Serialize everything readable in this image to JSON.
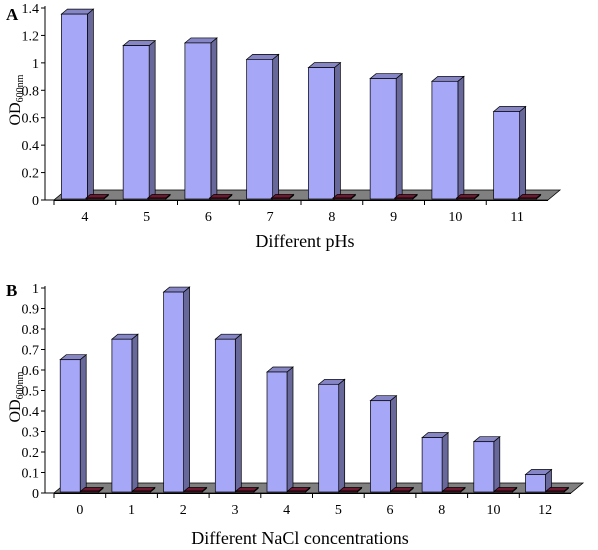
{
  "chart_data": [
    {
      "type": "bar",
      "panel_label": "A",
      "title": "",
      "xlabel": "Different pHs",
      "ylabel": "OD",
      "ylabel_subscript": "600nm",
      "categories": [
        "4",
        "5",
        "6",
        "7",
        "8",
        "9",
        "10",
        "11"
      ],
      "series": [
        {
          "values": [
            1.37,
            1.14,
            1.16,
            1.04,
            0.98,
            0.9,
            0.88,
            0.66
          ],
          "color": "#a7a7f8"
        },
        {
          "values": [
            0.01,
            0.01,
            0.01,
            0.01,
            0.01,
            0.01,
            0.01,
            0.01
          ],
          "color": "#8a1f3c"
        }
      ],
      "yticks": [
        "0",
        "0.2",
        "0.4",
        "0.6",
        "0.8",
        "1",
        "1.2",
        "1.4"
      ],
      "ylim": [
        0,
        1.4
      ],
      "grid": false,
      "floor_color": "#808080"
    },
    {
      "type": "bar",
      "panel_label": "B",
      "title": "",
      "xlabel": "Different NaCl concentrations",
      "ylabel": "OD",
      "ylabel_subscript": "600nm",
      "categories": [
        "0",
        "1",
        "2",
        "3",
        "4",
        "5",
        "6",
        "8",
        "10",
        "12"
      ],
      "series": [
        {
          "values": [
            0.66,
            0.76,
            0.99,
            0.76,
            0.6,
            0.54,
            0.46,
            0.28,
            0.26,
            0.1
          ],
          "color": "#a7a7f8"
        },
        {
          "values": [
            0.01,
            0.01,
            0.01,
            0.01,
            0.01,
            0.01,
            0.01,
            0.01,
            0.01,
            0.01
          ],
          "color": "#8a1f3c"
        }
      ],
      "yticks": [
        "0",
        "0.1",
        "0.2",
        "0.3",
        "0.4",
        "0.5",
        "0.6",
        "0.7",
        "0.8",
        "0.9",
        "1"
      ],
      "ylim": [
        0,
        1.0
      ],
      "grid": false,
      "floor_color": "#808080"
    }
  ]
}
